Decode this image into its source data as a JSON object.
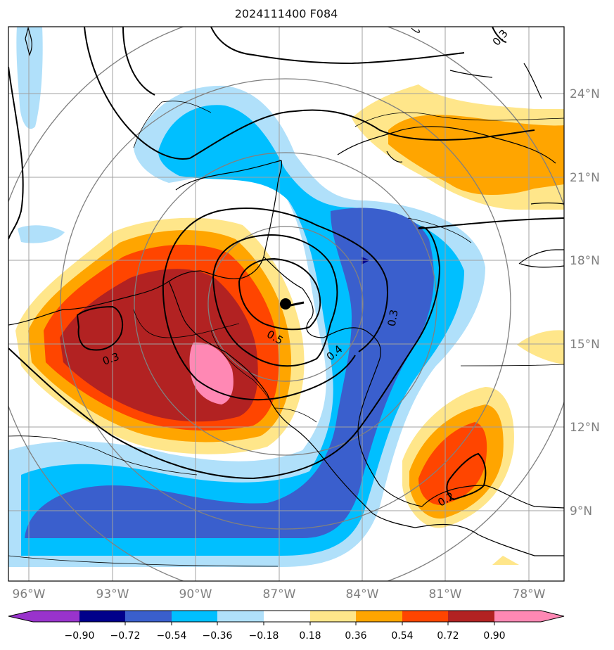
{
  "title": "2024111400 F084",
  "colors": {
    "neg_090": "#9933cc",
    "neg_072": "#00008b",
    "neg_054": "#3a5fcd",
    "neg_036": "#00bfff",
    "neg_018": "#b0e0fa",
    "zero": "#ffffff",
    "pos_018": "#ffe68a",
    "pos_036": "#ffa500",
    "pos_054": "#ff4500",
    "pos_072": "#b22222",
    "pos_090": "#ff88b4"
  },
  "axes": {
    "lon_labels": [
      "96°W",
      "93°W",
      "90°W",
      "87°W",
      "84°W",
      "81°W",
      "78°W"
    ],
    "lat_labels": [
      "24°N",
      "21°N",
      "18°N",
      "15°N",
      "12°N",
      "9°N"
    ]
  },
  "colorbar": {
    "tick_labels": [
      "−0.90",
      "−0.72",
      "−0.54",
      "−0.36",
      "−0.18",
      "0.18",
      "0.36",
      "0.54",
      "0.72",
      "0.90"
    ]
  },
  "contour_labels": [
    "0.3",
    "0.4",
    "0.5",
    "0.3",
    "0.2",
    "0.3"
  ],
  "storm_marker": "black-dot"
}
